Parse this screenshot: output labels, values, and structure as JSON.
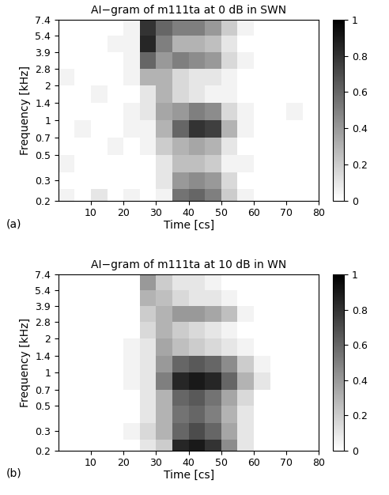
{
  "chart_data": [
    {
      "type": "heatmap",
      "title": "AI−gram of m111ta at 0 dB in SWN",
      "x_label": "Time [cs]",
      "y_label": "Frequency [kHz]",
      "panel_label": "(a)",
      "log": "y",
      "color": "gray_r",
      "xlim": [
        0,
        80
      ],
      "xticks": [
        10,
        20,
        30,
        40,
        50,
        60,
        70,
        80
      ],
      "ylim": [
        0.2,
        7.4
      ],
      "yticks": [
        0.2,
        0.3,
        0.5,
        0.7,
        1,
        1.4,
        2,
        2.8,
        3.9,
        5.4,
        7.4
      ],
      "x_edges": [
        0,
        5,
        10,
        15,
        20,
        25,
        30,
        35,
        40,
        45,
        50,
        55,
        60,
        65,
        70,
        75,
        80
      ],
      "y_edges": [
        0.2,
        0.25,
        0.35,
        0.5,
        0.7,
        1.0,
        1.4,
        2.0,
        2.8,
        3.9,
        5.4,
        7.4
      ],
      "cells": [
        [
          0.05,
          0,
          0.1,
          0,
          0.05,
          0,
          0.05,
          0.55,
          0.6,
          0.5,
          0.2,
          0.05,
          0,
          0,
          0,
          0
        ],
        [
          0,
          0,
          0,
          0,
          0,
          0,
          0.1,
          0.4,
          0.45,
          0.4,
          0.15,
          0,
          0,
          0,
          0,
          0
        ],
        [
          0.05,
          0,
          0,
          0,
          0,
          0,
          0.1,
          0.25,
          0.25,
          0.2,
          0.05,
          0.05,
          0,
          0,
          0,
          0
        ],
        [
          0,
          0,
          0,
          0.05,
          0,
          0.05,
          0.2,
          0.3,
          0.35,
          0.3,
          0.1,
          0,
          0,
          0,
          0,
          0
        ],
        [
          0,
          0.05,
          0,
          0,
          0.05,
          0.05,
          0.3,
          0.6,
          0.8,
          0.75,
          0.3,
          0.05,
          0,
          0,
          0,
          0
        ],
        [
          0,
          0,
          0,
          0,
          0.05,
          0.1,
          0.35,
          0.4,
          0.5,
          0.45,
          0.15,
          0.05,
          0,
          0,
          0.05,
          0
        ],
        [
          0,
          0,
          0.05,
          0,
          0,
          0.1,
          0.3,
          0.15,
          0.1,
          0.05,
          0.05,
          0,
          0,
          0,
          0,
          0
        ],
        [
          0.05,
          0,
          0,
          0,
          0.05,
          0.3,
          0.3,
          0.15,
          0.1,
          0.1,
          0.05,
          0,
          0,
          0,
          0,
          0
        ],
        [
          0,
          0,
          0,
          0,
          0.05,
          0.6,
          0.4,
          0.5,
          0.45,
          0.4,
          0.15,
          0.05,
          0,
          0,
          0,
          0
        ],
        [
          0,
          0,
          0,
          0.05,
          0.05,
          0.85,
          0.5,
          0.3,
          0.3,
          0.25,
          0.1,
          0,
          0,
          0,
          0,
          0
        ],
        [
          0,
          0,
          0,
          0,
          0.05,
          0.8,
          0.6,
          0.5,
          0.5,
          0.4,
          0.2,
          0.05,
          0,
          0,
          0,
          0
        ]
      ],
      "colorbar_range": [
        0,
        1
      ],
      "colorbar_ticks": [
        0,
        0.2,
        0.4,
        0.6,
        0.8,
        1
      ]
    },
    {
      "type": "heatmap",
      "title": "AI−gram of m111ta at 10 dB in WN",
      "x_label": "Time [cs]",
      "y_label": "Frequency [kHz]",
      "panel_label": "(b)",
      "log": "y",
      "color": "gray_r",
      "xlim": [
        0,
        80
      ],
      "xticks": [
        10,
        20,
        30,
        40,
        50,
        60,
        70,
        80
      ],
      "ylim": [
        0.2,
        7.4
      ],
      "yticks": [
        0.2,
        0.3,
        0.5,
        0.7,
        1,
        1.4,
        2,
        2.8,
        3.9,
        5.4,
        7.4
      ],
      "x_edges": [
        0,
        5,
        10,
        15,
        20,
        25,
        30,
        35,
        40,
        45,
        50,
        55,
        60,
        65,
        70,
        75,
        80
      ],
      "y_edges": [
        0.2,
        0.25,
        0.35,
        0.5,
        0.7,
        1.0,
        1.4,
        2.0,
        2.8,
        3.9,
        5.4,
        7.4
      ],
      "cells": [
        [
          0,
          0,
          0,
          0,
          0,
          0.1,
          0.2,
          0.85,
          0.9,
          0.8,
          0.45,
          0.1,
          0,
          0,
          0,
          0
        ],
        [
          0,
          0,
          0,
          0,
          0.05,
          0.15,
          0.3,
          0.6,
          0.7,
          0.6,
          0.35,
          0.1,
          0,
          0,
          0,
          0
        ],
        [
          0,
          0,
          0,
          0,
          0,
          0.1,
          0.3,
          0.55,
          0.6,
          0.5,
          0.3,
          0.1,
          0,
          0,
          0,
          0
        ],
        [
          0,
          0,
          0,
          0,
          0,
          0.1,
          0.3,
          0.6,
          0.65,
          0.55,
          0.35,
          0.15,
          0,
          0,
          0,
          0
        ],
        [
          0,
          0,
          0,
          0,
          0.05,
          0.1,
          0.5,
          0.85,
          0.9,
          0.85,
          0.6,
          0.3,
          0.1,
          0,
          0,
          0
        ],
        [
          0,
          0,
          0,
          0,
          0.05,
          0.1,
          0.4,
          0.6,
          0.65,
          0.6,
          0.45,
          0.2,
          0.05,
          0,
          0,
          0
        ],
        [
          0,
          0,
          0,
          0,
          0.05,
          0.1,
          0.35,
          0.25,
          0.2,
          0.15,
          0.1,
          0.05,
          0,
          0,
          0,
          0
        ],
        [
          0,
          0,
          0,
          0,
          0,
          0.15,
          0.3,
          0.2,
          0.15,
          0.1,
          0.05,
          0,
          0,
          0,
          0,
          0
        ],
        [
          0,
          0,
          0,
          0,
          0,
          0.2,
          0.3,
          0.4,
          0.4,
          0.35,
          0.25,
          0.05,
          0,
          0,
          0,
          0
        ],
        [
          0,
          0,
          0,
          0,
          0,
          0.3,
          0.25,
          0.15,
          0.1,
          0.1,
          0.05,
          0,
          0,
          0,
          0,
          0
        ],
        [
          0,
          0,
          0,
          0,
          0,
          0.4,
          0.2,
          0.1,
          0.1,
          0.05,
          0,
          0,
          0,
          0,
          0,
          0
        ]
      ],
      "colorbar_range": [
        0,
        1
      ],
      "colorbar_ticks": [
        0,
        0.2,
        0.4,
        0.6,
        0.8,
        1
      ]
    }
  ]
}
